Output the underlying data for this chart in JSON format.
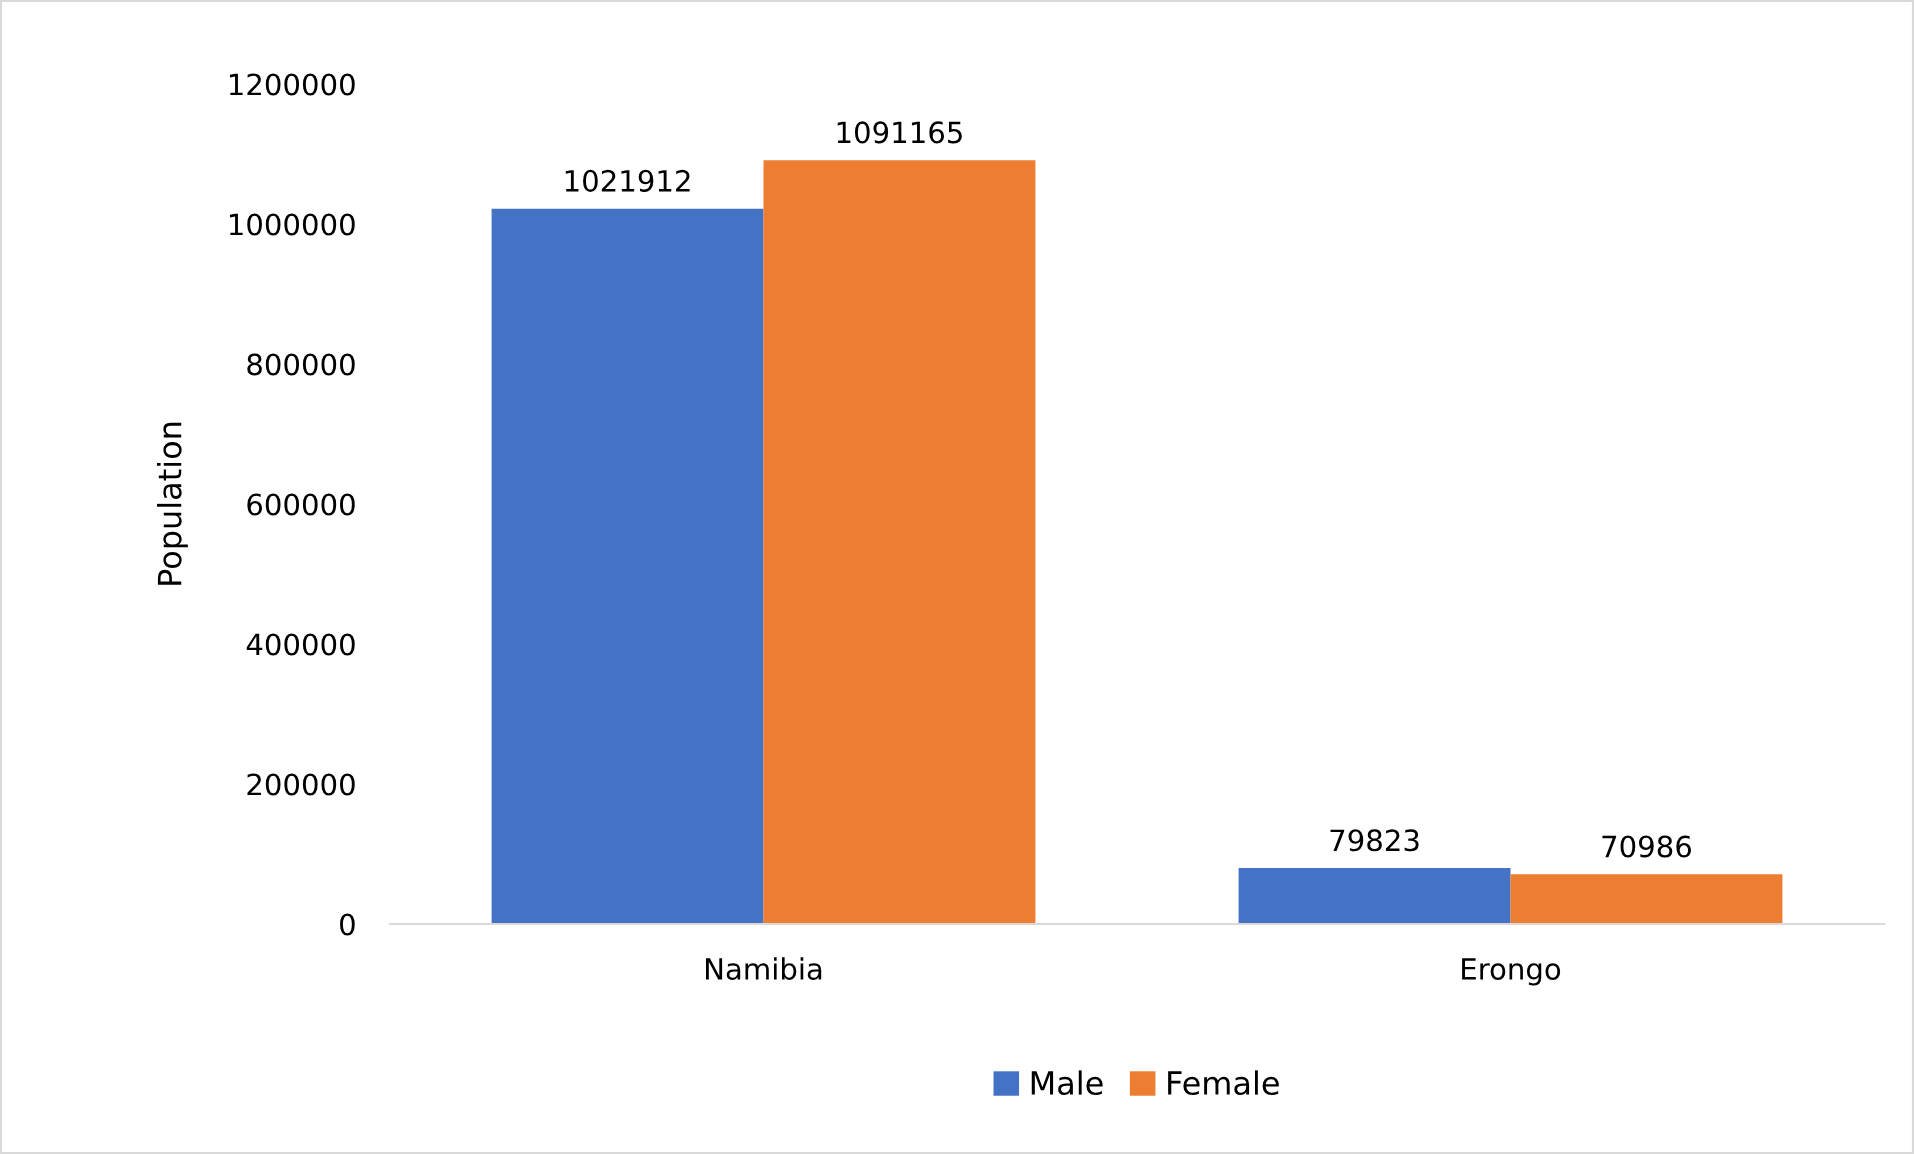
{
  "chart_data": {
    "type": "bar",
    "ylabel": "Population",
    "categories": [
      "Namibia",
      "Erongo"
    ],
    "series": [
      {
        "name": "Male",
        "color": "#4472c4",
        "values": [
          1021912,
          79823
        ]
      },
      {
        "name": "Female",
        "color": "#ed7d31",
        "values": [
          1091165,
          70986
        ]
      }
    ],
    "ylim": [
      0,
      1200000
    ],
    "yticks": [
      0,
      200000,
      400000,
      600000,
      800000,
      1000000,
      1200000
    ],
    "grid": false,
    "legend": "bottom",
    "data_labels": true
  }
}
